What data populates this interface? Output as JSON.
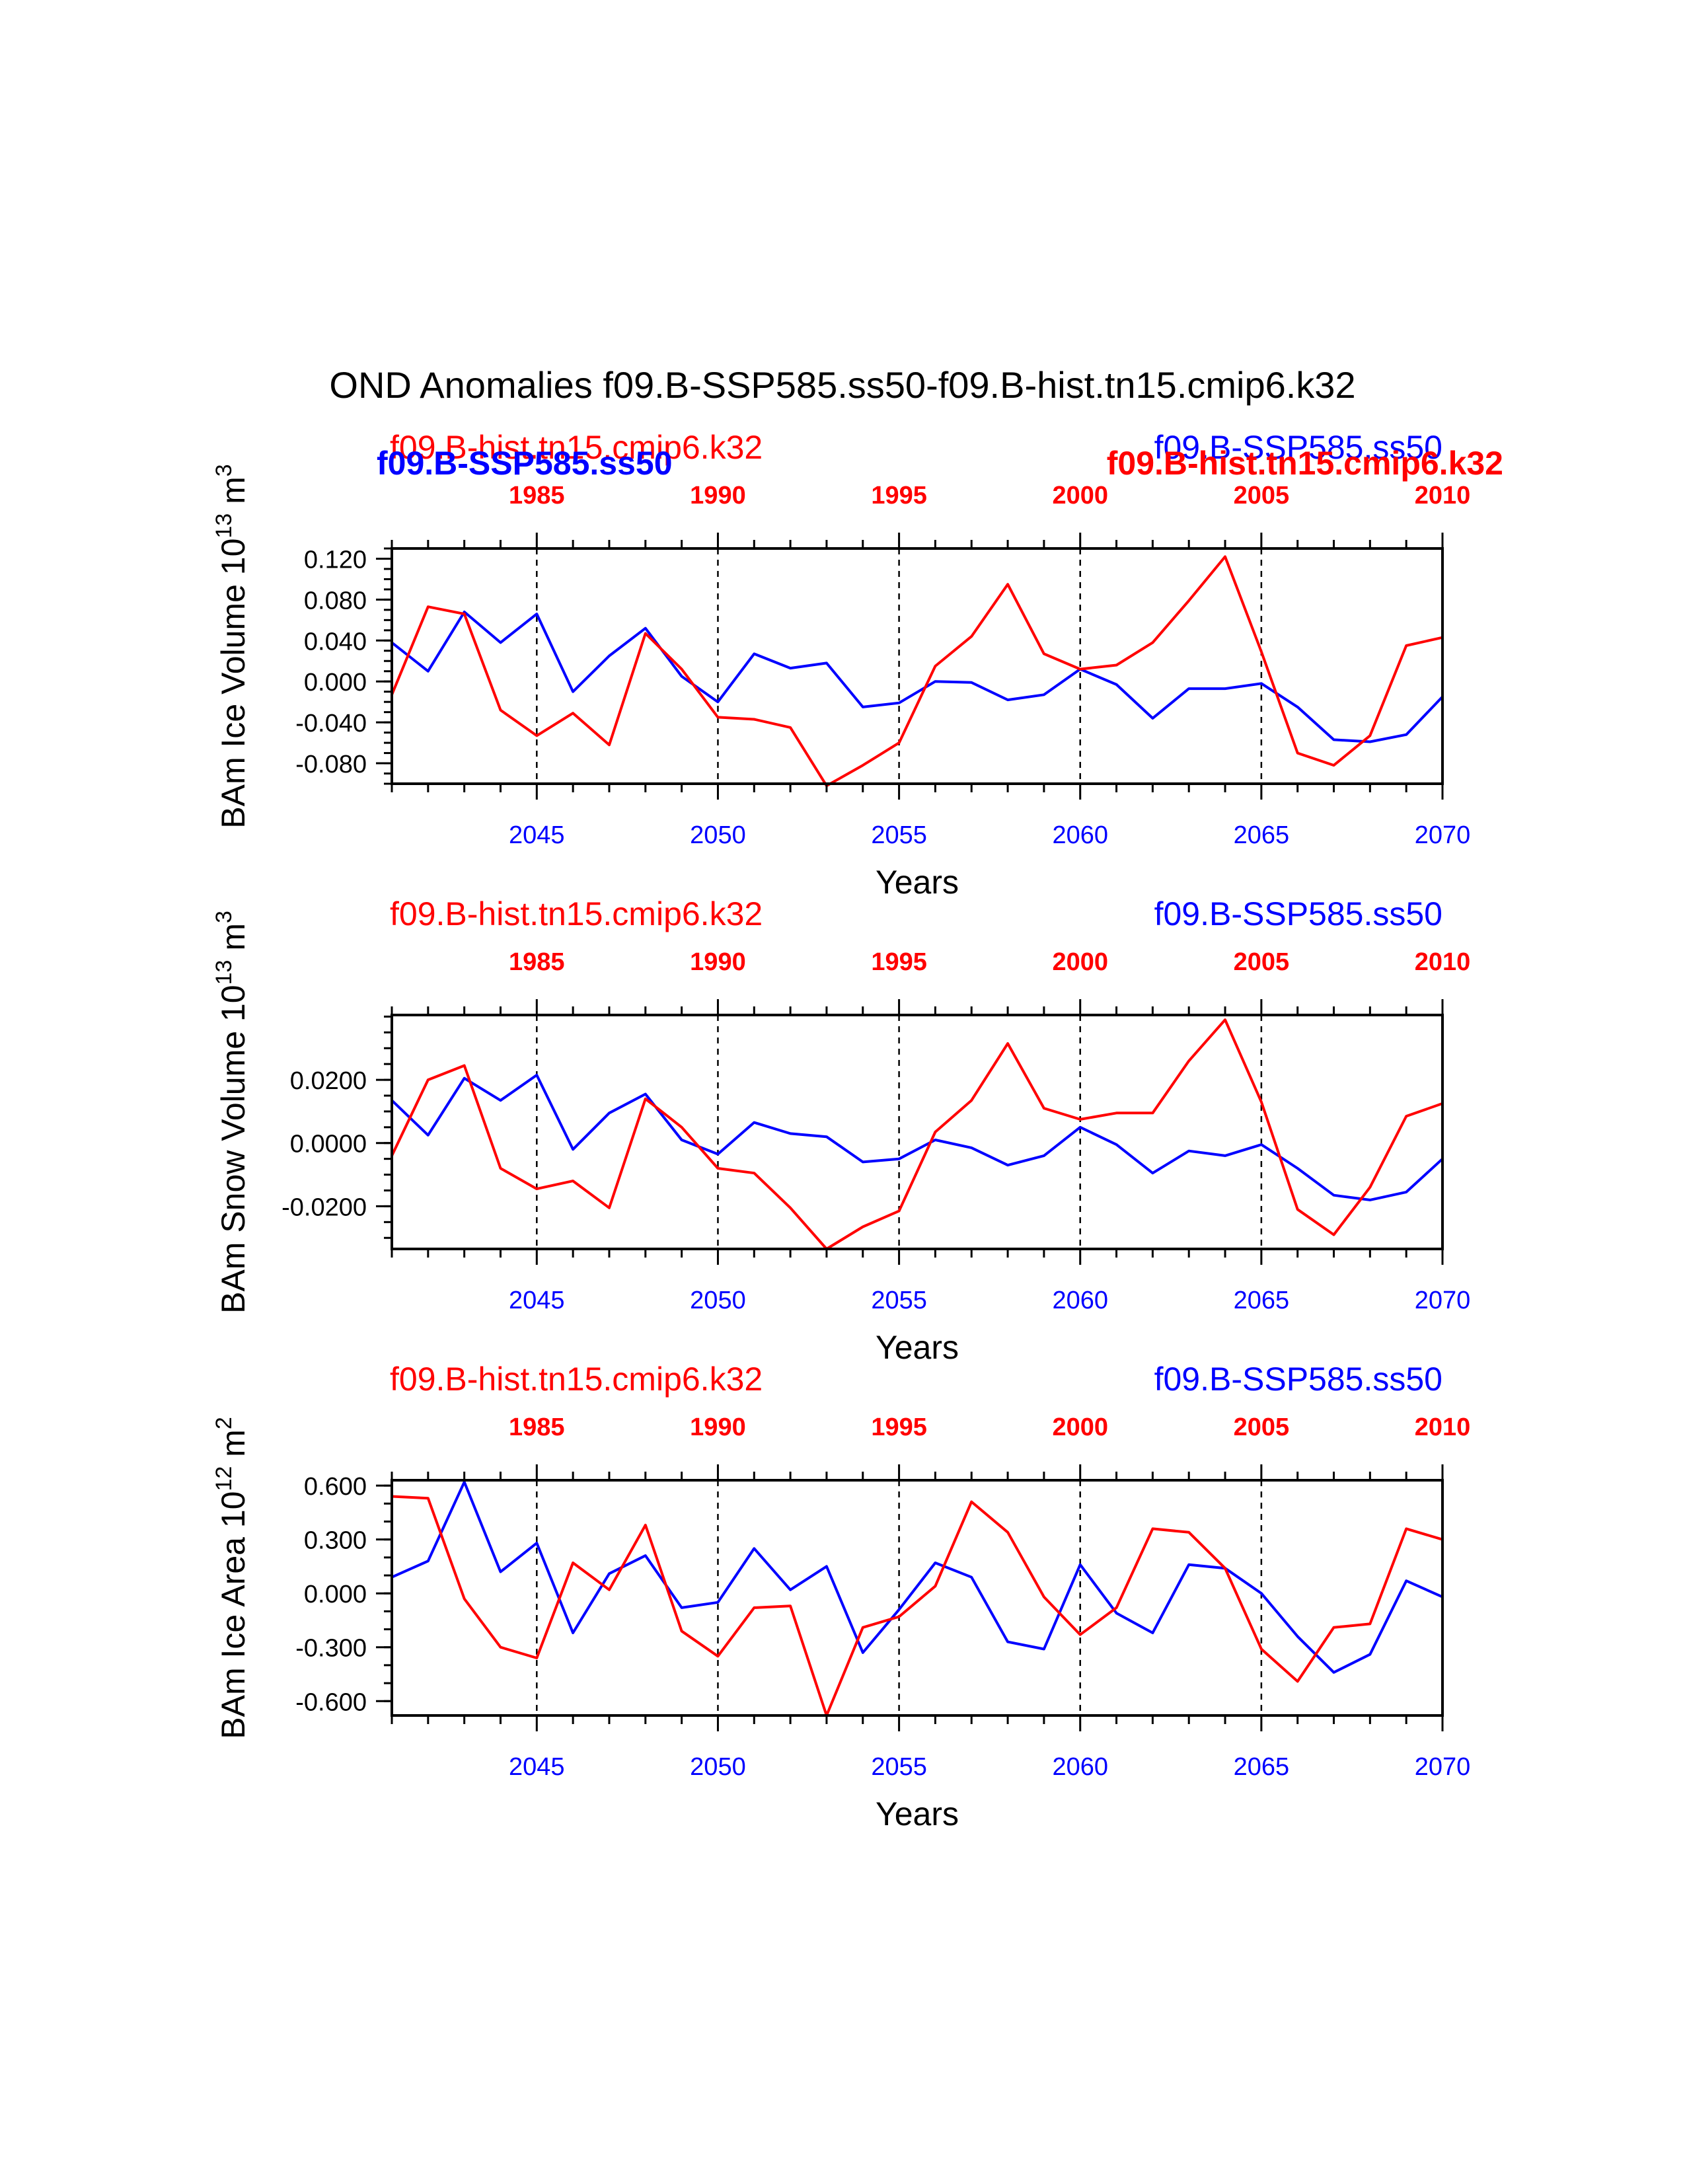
{
  "title": "OND Anomalies f09.B-SSP585.ss50-f09.B-hist.tn15.cmip6.k32",
  "colors": {
    "ssp": "#0000ff",
    "hist": "#ff0000",
    "frame": "#000000"
  },
  "chart_data": [
    {
      "type": "line",
      "ylabel": "BAm Ice Volume 10",
      "ylabel_exp": "13",
      "ylabel_unit": "m",
      "ylabel_unit_exp": "3",
      "xlabel": "Years",
      "ylim": [
        -0.1,
        0.13
      ],
      "yticks": [
        0.12,
        0.08,
        0.04,
        0.0,
        -0.04,
        -0.08
      ],
      "ytick_labels": [
        "0.120",
        "0.080",
        "0.040",
        "0.000",
        "-0.040",
        "-0.080"
      ],
      "yminor_step": 0.01,
      "x_bottom": {
        "start": 2041,
        "end": 2070,
        "ticks": [
          2045,
          2050,
          2055,
          2060,
          2065,
          2070
        ]
      },
      "x_top": {
        "start": 1981,
        "end": 2010,
        "ticks": [
          1985,
          1990,
          1995,
          2000,
          2005,
          2010
        ]
      },
      "top_labels": [
        {
          "text": "f09.B-hist.tn15.cmip6.k32",
          "color": "#ff0000",
          "bold": false,
          "pos": "left-upper"
        },
        {
          "text": "f09.B-SSP585.ss50",
          "color": "#0000ff",
          "bold": true,
          "pos": "left-lower"
        },
        {
          "text": "f09.B-SSP585.ss50",
          "color": "#0000ff",
          "bold": false,
          "pos": "right-upper"
        },
        {
          "text": "f09.B-hist.tn15.cmip6.k32",
          "color": "#ff0000",
          "bold": true,
          "pos": "right-lower"
        }
      ],
      "series": [
        {
          "name": "f09.B-SSP585.ss50",
          "axis": "bottom",
          "color": "#0000ff",
          "x": [
            2041,
            2042,
            2043,
            2044,
            2045,
            2046,
            2047,
            2048,
            2049,
            2050,
            2051,
            2052,
            2053,
            2054,
            2055,
            2056,
            2057,
            2058,
            2059,
            2060,
            2061,
            2062,
            2063,
            2064,
            2065,
            2066,
            2067,
            2068,
            2069,
            2070
          ],
          "values": [
            0.038,
            0.01,
            0.068,
            0.038,
            0.066,
            -0.01,
            0.025,
            0.052,
            0.005,
            -0.02,
            0.027,
            0.013,
            0.018,
            -0.025,
            -0.021,
            0.0,
            -0.001,
            -0.018,
            -0.013,
            0.012,
            -0.003,
            -0.036,
            -0.007,
            -0.007,
            -0.002,
            -0.025,
            -0.057,
            -0.059,
            -0.052,
            -0.015
          ]
        },
        {
          "name": "f09.B-hist.tn15.cmip6.k32",
          "axis": "top",
          "color": "#ff0000",
          "x": [
            1981,
            1982,
            1983,
            1984,
            1985,
            1986,
            1987,
            1988,
            1989,
            1990,
            1991,
            1992,
            1993,
            1994,
            1995,
            1996,
            1997,
            1998,
            1999,
            2000,
            2001,
            2002,
            2003,
            2004,
            2005,
            2006,
            2007,
            2008,
            2009,
            2010
          ],
          "values": [
            -0.013,
            0.073,
            0.066,
            -0.028,
            -0.053,
            -0.031,
            -0.062,
            0.047,
            0.012,
            -0.035,
            -0.037,
            -0.045,
            -0.102,
            -0.082,
            -0.06,
            0.015,
            0.044,
            0.095,
            0.027,
            0.012,
            0.016,
            0.038,
            0.079,
            0.122,
            0.029,
            -0.07,
            -0.082,
            -0.053,
            0.035,
            0.043
          ]
        }
      ]
    },
    {
      "type": "line",
      "ylabel": "BAm Snow Volume 10",
      "ylabel_exp": "13",
      "ylabel_unit": "m",
      "ylabel_unit_exp": "3",
      "xlabel": "Years",
      "ylim": [
        -0.0335,
        0.0405
      ],
      "yticks": [
        0.02,
        0.0,
        -0.02
      ],
      "ytick_labels": [
        "0.0200",
        "0.0000",
        "-0.0200"
      ],
      "yminor_step": 0.005,
      "x_bottom": {
        "start": 2041,
        "end": 2070,
        "ticks": [
          2045,
          2050,
          2055,
          2060,
          2065,
          2070
        ]
      },
      "x_top": {
        "start": 1981,
        "end": 2010,
        "ticks": [
          1985,
          1990,
          1995,
          2000,
          2005,
          2010
        ]
      },
      "top_labels": [
        {
          "text": "f09.B-hist.tn15.cmip6.k32",
          "color": "#ff0000",
          "bold": false,
          "pos": "left-upper"
        },
        {
          "text": "f09.B-SSP585.ss50",
          "color": "#0000ff",
          "bold": false,
          "pos": "right-upper"
        }
      ],
      "series": [
        {
          "name": "f09.B-SSP585.ss50",
          "axis": "bottom",
          "color": "#0000ff",
          "x": [
            2041,
            2042,
            2043,
            2044,
            2045,
            2046,
            2047,
            2048,
            2049,
            2050,
            2051,
            2052,
            2053,
            2054,
            2055,
            2056,
            2057,
            2058,
            2059,
            2060,
            2061,
            2062,
            2063,
            2064,
            2065,
            2066,
            2067,
            2068,
            2069,
            2070
          ],
          "values": [
            0.0135,
            0.0025,
            0.0205,
            0.0135,
            0.0215,
            -0.002,
            0.0095,
            0.0155,
            0.001,
            -0.0035,
            0.0065,
            0.003,
            0.002,
            -0.006,
            -0.005,
            0.001,
            -0.0015,
            -0.007,
            -0.004,
            0.005,
            -0.0005,
            -0.0095,
            -0.0025,
            -0.004,
            -0.0005,
            -0.008,
            -0.0165,
            -0.018,
            -0.0155,
            -0.005
          ]
        },
        {
          "name": "f09.B-hist.tn15.cmip6.k32",
          "axis": "top",
          "color": "#ff0000",
          "x": [
            1981,
            1982,
            1983,
            1984,
            1985,
            1986,
            1987,
            1988,
            1989,
            1990,
            1991,
            1992,
            1993,
            1994,
            1995,
            1996,
            1997,
            1998,
            1999,
            2000,
            2001,
            2002,
            2003,
            2004,
            2005,
            2006,
            2007,
            2008,
            2009,
            2010
          ],
          "values": [
            -0.004,
            0.02,
            0.0245,
            -0.008,
            -0.0145,
            -0.012,
            -0.0205,
            0.014,
            0.005,
            -0.008,
            -0.0095,
            -0.0205,
            -0.0335,
            -0.0265,
            -0.0215,
            0.0035,
            0.0135,
            0.0315,
            0.011,
            0.0075,
            0.0095,
            0.0095,
            0.026,
            0.039,
            0.013,
            -0.021,
            -0.029,
            -0.014,
            0.0085,
            0.0125
          ]
        }
      ]
    },
    {
      "type": "line",
      "ylabel": "BAm Ice Area 10",
      "ylabel_exp": "12",
      "ylabel_unit": "m",
      "ylabel_unit_exp": "2",
      "xlabel": "Years",
      "ylim": [
        -0.68,
        0.63
      ],
      "yticks": [
        0.6,
        0.3,
        0.0,
        -0.3,
        -0.6
      ],
      "ytick_labels": [
        "0.600",
        "0.300",
        "0.000",
        "-0.300",
        "-0.600"
      ],
      "yminor_step": 0.1,
      "x_bottom": {
        "start": 2041,
        "end": 2070,
        "ticks": [
          2045,
          2050,
          2055,
          2060,
          2065,
          2070
        ]
      },
      "x_top": {
        "start": 1981,
        "end": 2010,
        "ticks": [
          1985,
          1990,
          1995,
          2000,
          2005,
          2010
        ]
      },
      "top_labels": [
        {
          "text": "f09.B-hist.tn15.cmip6.k32",
          "color": "#ff0000",
          "bold": false,
          "pos": "left-upper"
        },
        {
          "text": "f09.B-SSP585.ss50",
          "color": "#0000ff",
          "bold": false,
          "pos": "right-upper"
        }
      ],
      "series": [
        {
          "name": "f09.B-SSP585.ss50",
          "axis": "bottom",
          "color": "#0000ff",
          "x": [
            2041,
            2042,
            2043,
            2044,
            2045,
            2046,
            2047,
            2048,
            2049,
            2050,
            2051,
            2052,
            2053,
            2054,
            2055,
            2056,
            2057,
            2058,
            2059,
            2060,
            2061,
            2062,
            2063,
            2064,
            2065,
            2066,
            2067,
            2068,
            2069,
            2070
          ],
          "values": [
            0.09,
            0.18,
            0.62,
            0.12,
            0.28,
            -0.22,
            0.11,
            0.21,
            -0.08,
            -0.05,
            0.25,
            0.02,
            0.15,
            -0.33,
            -0.09,
            0.17,
            0.09,
            -0.27,
            -0.31,
            0.16,
            -0.11,
            -0.22,
            0.16,
            0.14,
            0.0,
            -0.24,
            -0.44,
            -0.34,
            0.07,
            -0.02
          ]
        },
        {
          "name": "f09.B-hist.tn15.cmip6.k32",
          "axis": "top",
          "color": "#ff0000",
          "x": [
            1981,
            1982,
            1983,
            1984,
            1985,
            1986,
            1987,
            1988,
            1989,
            1990,
            1991,
            1992,
            1993,
            1994,
            1995,
            1996,
            1997,
            1998,
            1999,
            2000,
            2001,
            2002,
            2003,
            2004,
            2005,
            2006,
            2007,
            2008,
            2009,
            2010
          ],
          "values": [
            0.54,
            0.53,
            -0.03,
            -0.3,
            -0.36,
            0.17,
            0.02,
            0.38,
            -0.21,
            -0.35,
            -0.08,
            -0.07,
            -0.68,
            -0.19,
            -0.13,
            0.04,
            0.51,
            0.34,
            -0.02,
            -0.23,
            -0.08,
            0.36,
            0.34,
            0.14,
            -0.31,
            -0.49,
            -0.19,
            -0.17,
            0.36,
            0.3
          ]
        }
      ]
    }
  ]
}
